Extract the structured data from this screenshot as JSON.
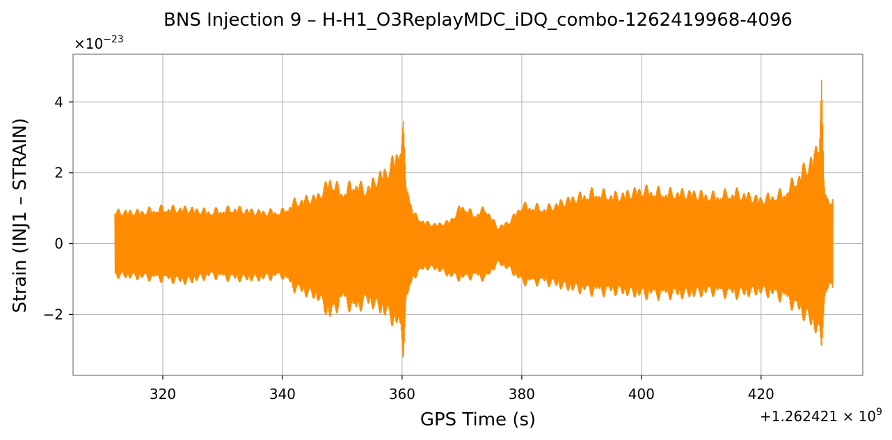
{
  "chart_data": {
    "type": "line",
    "title": "BNS Injection 9 – H-H1_O3ReplayMDC_iDQ_combo-1262419968-4096",
    "xlabel": "GPS Time (s)",
    "ylabel": "Strain (INJ1 – STRAIN)",
    "y_scale_label": "×10",
    "y_scale_exponent": "−23",
    "x_offset_label": "+1.262421 × 10",
    "x_offset_exponent": "9",
    "xlim": [
      305,
      437
    ],
    "ylim": [
      -3.72,
      5.35
    ],
    "x_ticks": [
      {
        "value": 320,
        "label": "320"
      },
      {
        "value": 340,
        "label": "340"
      },
      {
        "value": 360,
        "label": "360"
      },
      {
        "value": 380,
        "label": "380"
      },
      {
        "value": 400,
        "label": "400"
      },
      {
        "value": 420,
        "label": "420"
      }
    ],
    "y_ticks": [
      {
        "value": -2,
        "label": "−2"
      },
      {
        "value": 0,
        "label": "0"
      },
      {
        "value": 2,
        "label": "2"
      },
      {
        "value": 4,
        "label": "4"
      }
    ],
    "grid": true,
    "line_color": "#ff8c00",
    "series": [
      {
        "upper_envelope": [
          [
            312,
            1.0
          ],
          [
            316,
            1.0
          ],
          [
            320,
            1.1
          ],
          [
            324,
            1.1
          ],
          [
            328,
            1.0
          ],
          [
            332,
            1.1
          ],
          [
            336,
            1.0
          ],
          [
            340,
            1.0
          ],
          [
            342,
            1.3
          ],
          [
            346,
            1.5
          ],
          [
            348,
            2.0
          ],
          [
            350,
            1.6
          ],
          [
            352,
            1.9
          ],
          [
            354,
            1.7
          ],
          [
            356,
            2.1
          ],
          [
            358,
            2.4
          ],
          [
            359.5,
            3.0
          ],
          [
            360.2,
            3.5
          ],
          [
            360.6,
            2.0
          ],
          [
            362,
            0.9
          ],
          [
            364,
            0.65
          ],
          [
            366,
            0.6
          ],
          [
            368,
            0.7
          ],
          [
            370,
            1.2
          ],
          [
            372,
            0.9
          ],
          [
            374,
            1.1
          ],
          [
            376,
            0.5
          ],
          [
            378,
            0.7
          ],
          [
            380,
            1.2
          ],
          [
            384,
            1.1
          ],
          [
            388,
            1.4
          ],
          [
            392,
            1.6
          ],
          [
            396,
            1.5
          ],
          [
            400,
            1.7
          ],
          [
            404,
            1.6
          ],
          [
            408,
            1.6
          ],
          [
            412,
            1.5
          ],
          [
            416,
            1.6
          ],
          [
            420,
            1.4
          ],
          [
            424,
            1.6
          ],
          [
            427,
            2.3
          ],
          [
            429,
            2.8
          ],
          [
            429.7,
            3.3
          ],
          [
            430.1,
            5.0
          ],
          [
            430.5,
            2.0
          ],
          [
            431,
            1.4
          ],
          [
            432,
            1.4
          ]
        ],
        "lower_envelope": [
          [
            312,
            -1.0
          ],
          [
            316,
            -1.05
          ],
          [
            320,
            -1.1
          ],
          [
            324,
            -1.2
          ],
          [
            328,
            -1.0
          ],
          [
            332,
            -1.1
          ],
          [
            336,
            -1.1
          ],
          [
            340,
            -1.0
          ],
          [
            342,
            -1.4
          ],
          [
            346,
            -1.7
          ],
          [
            348,
            -2.3
          ],
          [
            350,
            -1.7
          ],
          [
            352,
            -2.1
          ],
          [
            354,
            -1.8
          ],
          [
            356,
            -2.0
          ],
          [
            358,
            -2.3
          ],
          [
            359.5,
            -2.6
          ],
          [
            360.2,
            -3.35
          ],
          [
            360.6,
            -1.9
          ],
          [
            362,
            -1.0
          ],
          [
            364,
            -0.75
          ],
          [
            366,
            -0.8
          ],
          [
            368,
            -1.0
          ],
          [
            370,
            -1.1
          ],
          [
            372,
            -1.0
          ],
          [
            374,
            -1.1
          ],
          [
            376,
            -0.6
          ],
          [
            378,
            -0.8
          ],
          [
            380,
            -1.2
          ],
          [
            384,
            -1.2
          ],
          [
            388,
            -1.4
          ],
          [
            392,
            -1.5
          ],
          [
            396,
            -1.5
          ],
          [
            400,
            -1.6
          ],
          [
            404,
            -1.6
          ],
          [
            408,
            -1.6
          ],
          [
            412,
            -1.5
          ],
          [
            416,
            -1.6
          ],
          [
            420,
            -1.5
          ],
          [
            424,
            -1.7
          ],
          [
            427,
            -2.2
          ],
          [
            429,
            -2.6
          ],
          [
            429.7,
            -2.9
          ],
          [
            430.1,
            -3.2
          ],
          [
            430.5,
            -2.0
          ],
          [
            431,
            -1.4
          ],
          [
            432,
            -1.4
          ]
        ]
      }
    ]
  }
}
